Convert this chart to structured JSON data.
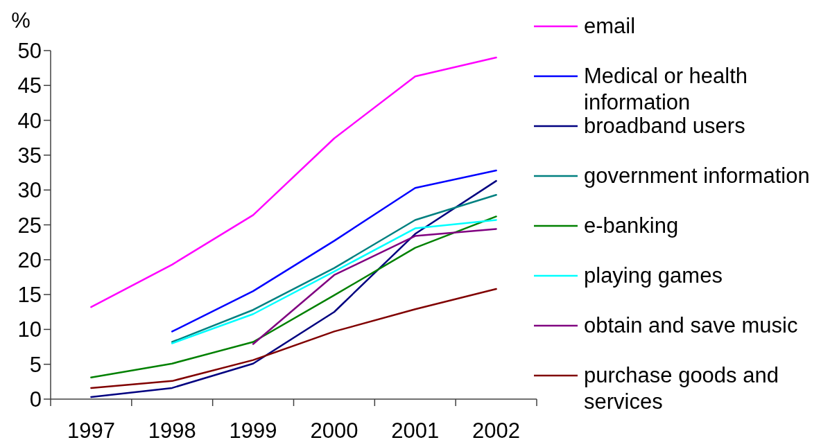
{
  "chart_data": {
    "type": "line",
    "ylabel": "%",
    "categories": [
      "1997",
      "1998",
      "1999",
      "2000",
      "2001",
      "2002"
    ],
    "series": [
      {
        "name": "email",
        "color": "#ff00ff",
        "values": [
          13.2,
          19.3,
          26.4,
          37.4,
          46.3,
          49.0
        ]
      },
      {
        "name": "Medical or health information",
        "color": "#0000ff",
        "values": [
          null,
          9.7,
          15.5,
          22.7,
          30.3,
          32.8
        ]
      },
      {
        "name": "broadband users",
        "color": "#000080",
        "values": [
          0.3,
          1.6,
          5.1,
          12.5,
          23.7,
          31.3
        ]
      },
      {
        "name": "government information",
        "color": "#008080",
        "values": [
          null,
          8.2,
          12.8,
          18.8,
          25.7,
          29.3
        ]
      },
      {
        "name": "e-banking",
        "color": "#008000",
        "values": [
          3.1,
          5.1,
          8.2,
          14.9,
          21.7,
          26.2
        ]
      },
      {
        "name": "playing games",
        "color": "#00ffff",
        "values": [
          null,
          8.0,
          12.2,
          18.3,
          24.5,
          25.7
        ]
      },
      {
        "name": "obtain and save music",
        "color": "#800080",
        "values": [
          null,
          null,
          7.9,
          17.8,
          23.4,
          24.4
        ]
      },
      {
        "name": "purchase goods and services",
        "color": "#800000",
        "values": [
          1.6,
          2.6,
          5.6,
          9.7,
          12.9,
          15.8
        ]
      }
    ],
    "ylim": [
      0,
      50
    ],
    "yticks": [
      0,
      5,
      10,
      15,
      20,
      25,
      30,
      35,
      40,
      45,
      50
    ],
    "legend": "right",
    "marker": "none"
  }
}
